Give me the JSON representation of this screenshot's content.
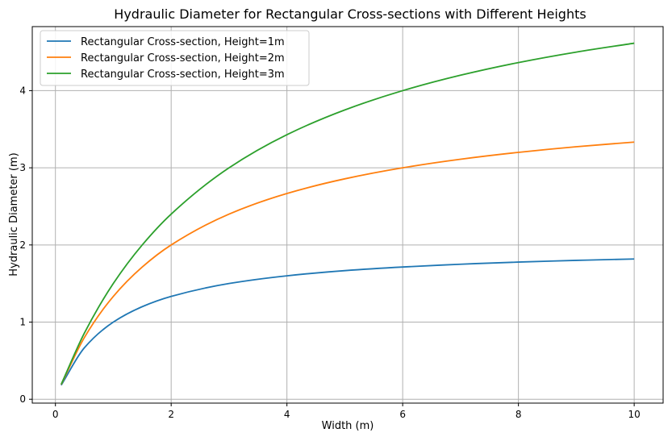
{
  "chart_data": {
    "type": "line",
    "title": "Hydraulic Diameter for Rectangular Cross-sections with Different Heights",
    "xlabel": "Width (m)",
    "ylabel": "Hydraulic Diameter (m)",
    "xlim": [
      -0.4,
      10.5
    ],
    "ylim": [
      -0.05,
      4.83
    ],
    "xticks": [
      0,
      2,
      4,
      6,
      8,
      10
    ],
    "yticks": [
      0,
      1,
      2,
      3,
      4
    ],
    "grid": true,
    "legend_position": "upper-left",
    "x": [
      0.1,
      0.5,
      1,
      1.5,
      2,
      3,
      4,
      5,
      6,
      7,
      8,
      9,
      10
    ],
    "series": [
      {
        "name": "Rectangular Cross-section, Height=1m",
        "color": "#1f77b4",
        "values": [
          0.182,
          0.667,
          1.0,
          1.2,
          1.333,
          1.5,
          1.6,
          1.667,
          1.714,
          1.75,
          1.778,
          1.8,
          1.818
        ]
      },
      {
        "name": "Rectangular Cross-section, Height=2m",
        "color": "#ff7f0e",
        "values": [
          0.19,
          0.8,
          1.333,
          1.714,
          2.0,
          2.4,
          2.667,
          2.857,
          3.0,
          3.111,
          3.2,
          3.273,
          3.333
        ]
      },
      {
        "name": "Rectangular Cross-section, Height=3m",
        "color": "#2ca02c",
        "values": [
          0.194,
          0.857,
          1.5,
          2.0,
          2.4,
          3.0,
          3.429,
          3.75,
          4.0,
          4.2,
          4.364,
          4.5,
          4.615
        ]
      }
    ]
  }
}
